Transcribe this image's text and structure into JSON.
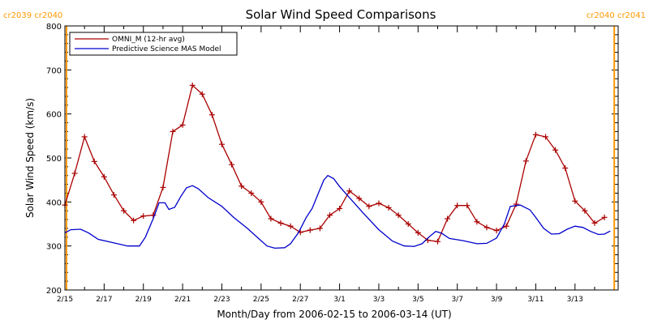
{
  "chart_data": {
    "type": "line",
    "title": "Solar Wind Speed Comparisons",
    "xlabel": "Month/Day from 2006-02-15 to 2006-03-14 (UT)",
    "ylabel": "Solar Wind Speed (km/s)",
    "xlim": [
      0,
      28.2
    ],
    "ylim": [
      200,
      800
    ],
    "yticks": [
      200,
      300,
      400,
      500,
      600,
      700,
      800
    ],
    "x_ticks": [
      {
        "x": 0,
        "label": "2/15"
      },
      {
        "x": 2,
        "label": "2/17"
      },
      {
        "x": 4,
        "label": "2/19"
      },
      {
        "x": 6,
        "label": "2/21"
      },
      {
        "x": 8,
        "label": "2/23"
      },
      {
        "x": 10,
        "label": "2/25"
      },
      {
        "x": 12,
        "label": "2/27"
      },
      {
        "x": 14,
        "label": "3/1"
      },
      {
        "x": 16,
        "label": "3/3"
      },
      {
        "x": 18,
        "label": "3/5"
      },
      {
        "x": 20,
        "label": "3/7"
      },
      {
        "x": 22,
        "label": "3/9"
      },
      {
        "x": 24,
        "label": "3/11"
      },
      {
        "x": 26,
        "label": "3/13"
      }
    ],
    "legend_position": "top-left",
    "carrington_markers": [
      {
        "x": 0.08,
        "labels": [
          "cr2039",
          "cr2040"
        ],
        "color": "#ff9900"
      },
      {
        "x": 28.0,
        "labels": [
          "cr2040",
          "cr2041"
        ],
        "color": "#ff9900"
      }
    ],
    "series": [
      {
        "name": "OMNI_M (12-hr avg)",
        "color": "#aa0000",
        "marker": "plus",
        "points": [
          [
            0.0,
            393
          ],
          [
            0.5,
            465
          ],
          [
            1.0,
            548
          ],
          [
            1.5,
            492
          ],
          [
            2.0,
            457
          ],
          [
            2.5,
            416
          ],
          [
            3.0,
            380
          ],
          [
            3.5,
            358
          ],
          [
            4.0,
            368
          ],
          [
            4.5,
            370
          ],
          [
            5.0,
            433
          ],
          [
            5.5,
            560
          ],
          [
            6.0,
            575
          ],
          [
            6.5,
            665
          ],
          [
            7.0,
            645
          ],
          [
            7.5,
            598
          ],
          [
            8.0,
            531
          ],
          [
            8.5,
            485
          ],
          [
            9.0,
            436
          ],
          [
            9.5,
            420
          ],
          [
            10.0,
            400
          ],
          [
            10.5,
            362
          ],
          [
            11.0,
            352
          ],
          [
            11.5,
            345
          ],
          [
            12.0,
            331
          ],
          [
            12.5,
            336
          ],
          [
            13.0,
            340
          ],
          [
            13.5,
            370
          ],
          [
            14.0,
            385
          ],
          [
            14.5,
            425
          ],
          [
            15.0,
            408
          ],
          [
            15.5,
            390
          ],
          [
            16.0,
            397
          ],
          [
            16.5,
            387
          ],
          [
            17.0,
            370
          ],
          [
            17.5,
            350
          ],
          [
            18.0,
            330
          ],
          [
            18.5,
            313
          ],
          [
            19.0,
            310
          ],
          [
            19.5,
            362
          ],
          [
            20.0,
            392
          ],
          [
            20.5,
            392
          ],
          [
            21.0,
            355
          ],
          [
            21.5,
            342
          ],
          [
            22.0,
            335
          ],
          [
            22.5,
            345
          ],
          [
            23.0,
            395
          ],
          [
            23.5,
            493
          ],
          [
            24.0,
            553
          ],
          [
            24.5,
            548
          ],
          [
            25.0,
            518
          ],
          [
            25.5,
            477
          ],
          [
            26.0,
            402
          ],
          [
            26.5,
            380
          ],
          [
            27.0,
            352
          ],
          [
            27.5,
            365
          ]
        ]
      },
      {
        "name": "Predictive Science MAS Model",
        "color": "#0000cc",
        "marker": "none",
        "points": [
          [
            0.0,
            330
          ],
          [
            0.3,
            337
          ],
          [
            0.8,
            338
          ],
          [
            1.2,
            330
          ],
          [
            1.7,
            315
          ],
          [
            2.5,
            307
          ],
          [
            3.2,
            300
          ],
          [
            3.8,
            300
          ],
          [
            4.1,
            320
          ],
          [
            4.5,
            362
          ],
          [
            4.8,
            398
          ],
          [
            5.1,
            398
          ],
          [
            5.3,
            383
          ],
          [
            5.6,
            388
          ],
          [
            5.9,
            412
          ],
          [
            6.2,
            432
          ],
          [
            6.5,
            437
          ],
          [
            6.8,
            430
          ],
          [
            7.3,
            410
          ],
          [
            8.0,
            390
          ],
          [
            8.6,
            365
          ],
          [
            9.3,
            340
          ],
          [
            9.9,
            316
          ],
          [
            10.3,
            300
          ],
          [
            10.7,
            295
          ],
          [
            11.2,
            296
          ],
          [
            11.5,
            305
          ],
          [
            11.9,
            330
          ],
          [
            12.3,
            365
          ],
          [
            12.6,
            385
          ],
          [
            12.9,
            418
          ],
          [
            13.2,
            450
          ],
          [
            13.4,
            460
          ],
          [
            13.7,
            453
          ],
          [
            14.0,
            435
          ],
          [
            14.5,
            410
          ],
          [
            15.2,
            375
          ],
          [
            16.0,
            337
          ],
          [
            16.7,
            311
          ],
          [
            17.3,
            300
          ],
          [
            17.8,
            299
          ],
          [
            18.2,
            305
          ],
          [
            18.6,
            322
          ],
          [
            18.9,
            333
          ],
          [
            19.2,
            329
          ],
          [
            19.6,
            317
          ],
          [
            20.3,
            312
          ],
          [
            21.0,
            305
          ],
          [
            21.5,
            306
          ],
          [
            22.0,
            318
          ],
          [
            22.4,
            350
          ],
          [
            22.7,
            390
          ],
          [
            23.2,
            393
          ],
          [
            23.7,
            382
          ],
          [
            24.0,
            365
          ],
          [
            24.4,
            340
          ],
          [
            24.8,
            327
          ],
          [
            25.2,
            328
          ],
          [
            25.6,
            338
          ],
          [
            26.0,
            345
          ],
          [
            26.4,
            342
          ],
          [
            26.8,
            333
          ],
          [
            27.2,
            326
          ],
          [
            27.5,
            327
          ],
          [
            27.8,
            334
          ]
        ]
      }
    ]
  }
}
